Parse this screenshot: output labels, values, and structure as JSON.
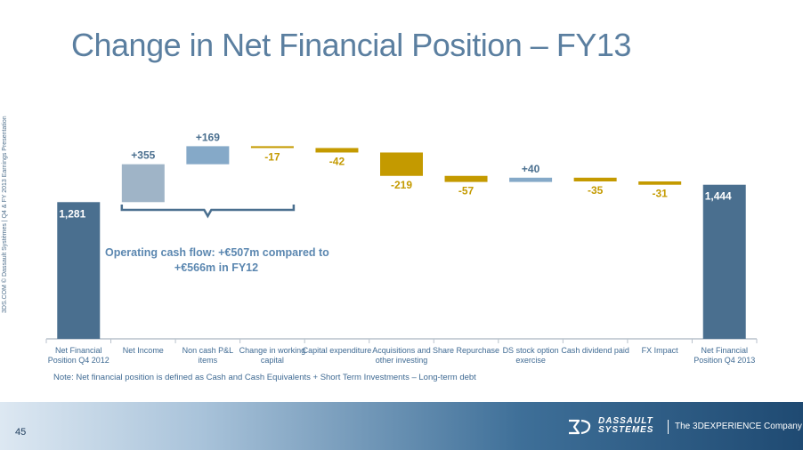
{
  "slide": {
    "title": "Change in Net Financial Position – FY13",
    "side_label": "3DS.COM © Dassault Systèmes | Q4 & FY 2013 Earnings Presentation",
    "annotation": {
      "line1": "Operating cash flow: +€507m compared to",
      "line2": "+€566m in FY12"
    },
    "note": "Note: Net financial position is defined as Cash and Cash Equivalents + Short Term Investments – Long-term debt",
    "page_number": "45",
    "logo": {
      "company_name": "DASSAULT SYSTEMES",
      "tagline": "The 3DEXPERIENCE Company"
    }
  },
  "chart_data": {
    "type": "waterfall",
    "title": "Change in Net Financial Position – FY13",
    "unit": "€m",
    "ylim": [
      0,
      1900
    ],
    "categories": [
      "Net Financial Position Q4 2012",
      "Net Income",
      "Non cash P&L items",
      "Change in working capital",
      "Capital expenditure",
      "Acquisitions and other investing",
      "Share Repurchase",
      "DS stock option exercise",
      "Cash dividend paid",
      "FX Impact",
      "Net Financial Position Q4 2013"
    ],
    "category_lines": [
      [
        "Net Financial",
        "Position Q4 2012"
      ],
      [
        "Net Income"
      ],
      [
        "Non cash P&L",
        "items"
      ],
      [
        "Change in working",
        "capital"
      ],
      [
        "Capital expenditure"
      ],
      [
        "Acquisitions and",
        "other investing"
      ],
      [
        "Share Repurchase"
      ],
      [
        "DS stock option",
        "exercise"
      ],
      [
        "Cash dividend paid"
      ],
      [
        "FX Impact"
      ],
      [
        "Net Financial",
        "Position Q4 2013"
      ]
    ],
    "values": [
      1281,
      355,
      169,
      -17,
      -42,
      -219,
      -57,
      40,
      -35,
      -31,
      1444
    ],
    "labels": [
      "1,281",
      "+355",
      "+169",
      "-17",
      "-42",
      "-219",
      "-57",
      "+40",
      "-35",
      "-31",
      "1,444"
    ],
    "kinds": [
      "total",
      "increase",
      "increase",
      "decrease",
      "decrease",
      "decrease",
      "decrease",
      "increase",
      "decrease",
      "decrease",
      "total"
    ],
    "bracket_range": [
      1,
      3
    ],
    "colors": {
      "total": "#4a6f8f",
      "net_income": "#9fb4c7",
      "increase": "#85a9c8",
      "decrease": "#c49a00",
      "label_on_total": "#ffffff",
      "label_increase": "#4a6f8f",
      "label_decrease": "#c49a00",
      "axis": "#b8c2cc",
      "bracket": "#4a6f8f"
    }
  }
}
